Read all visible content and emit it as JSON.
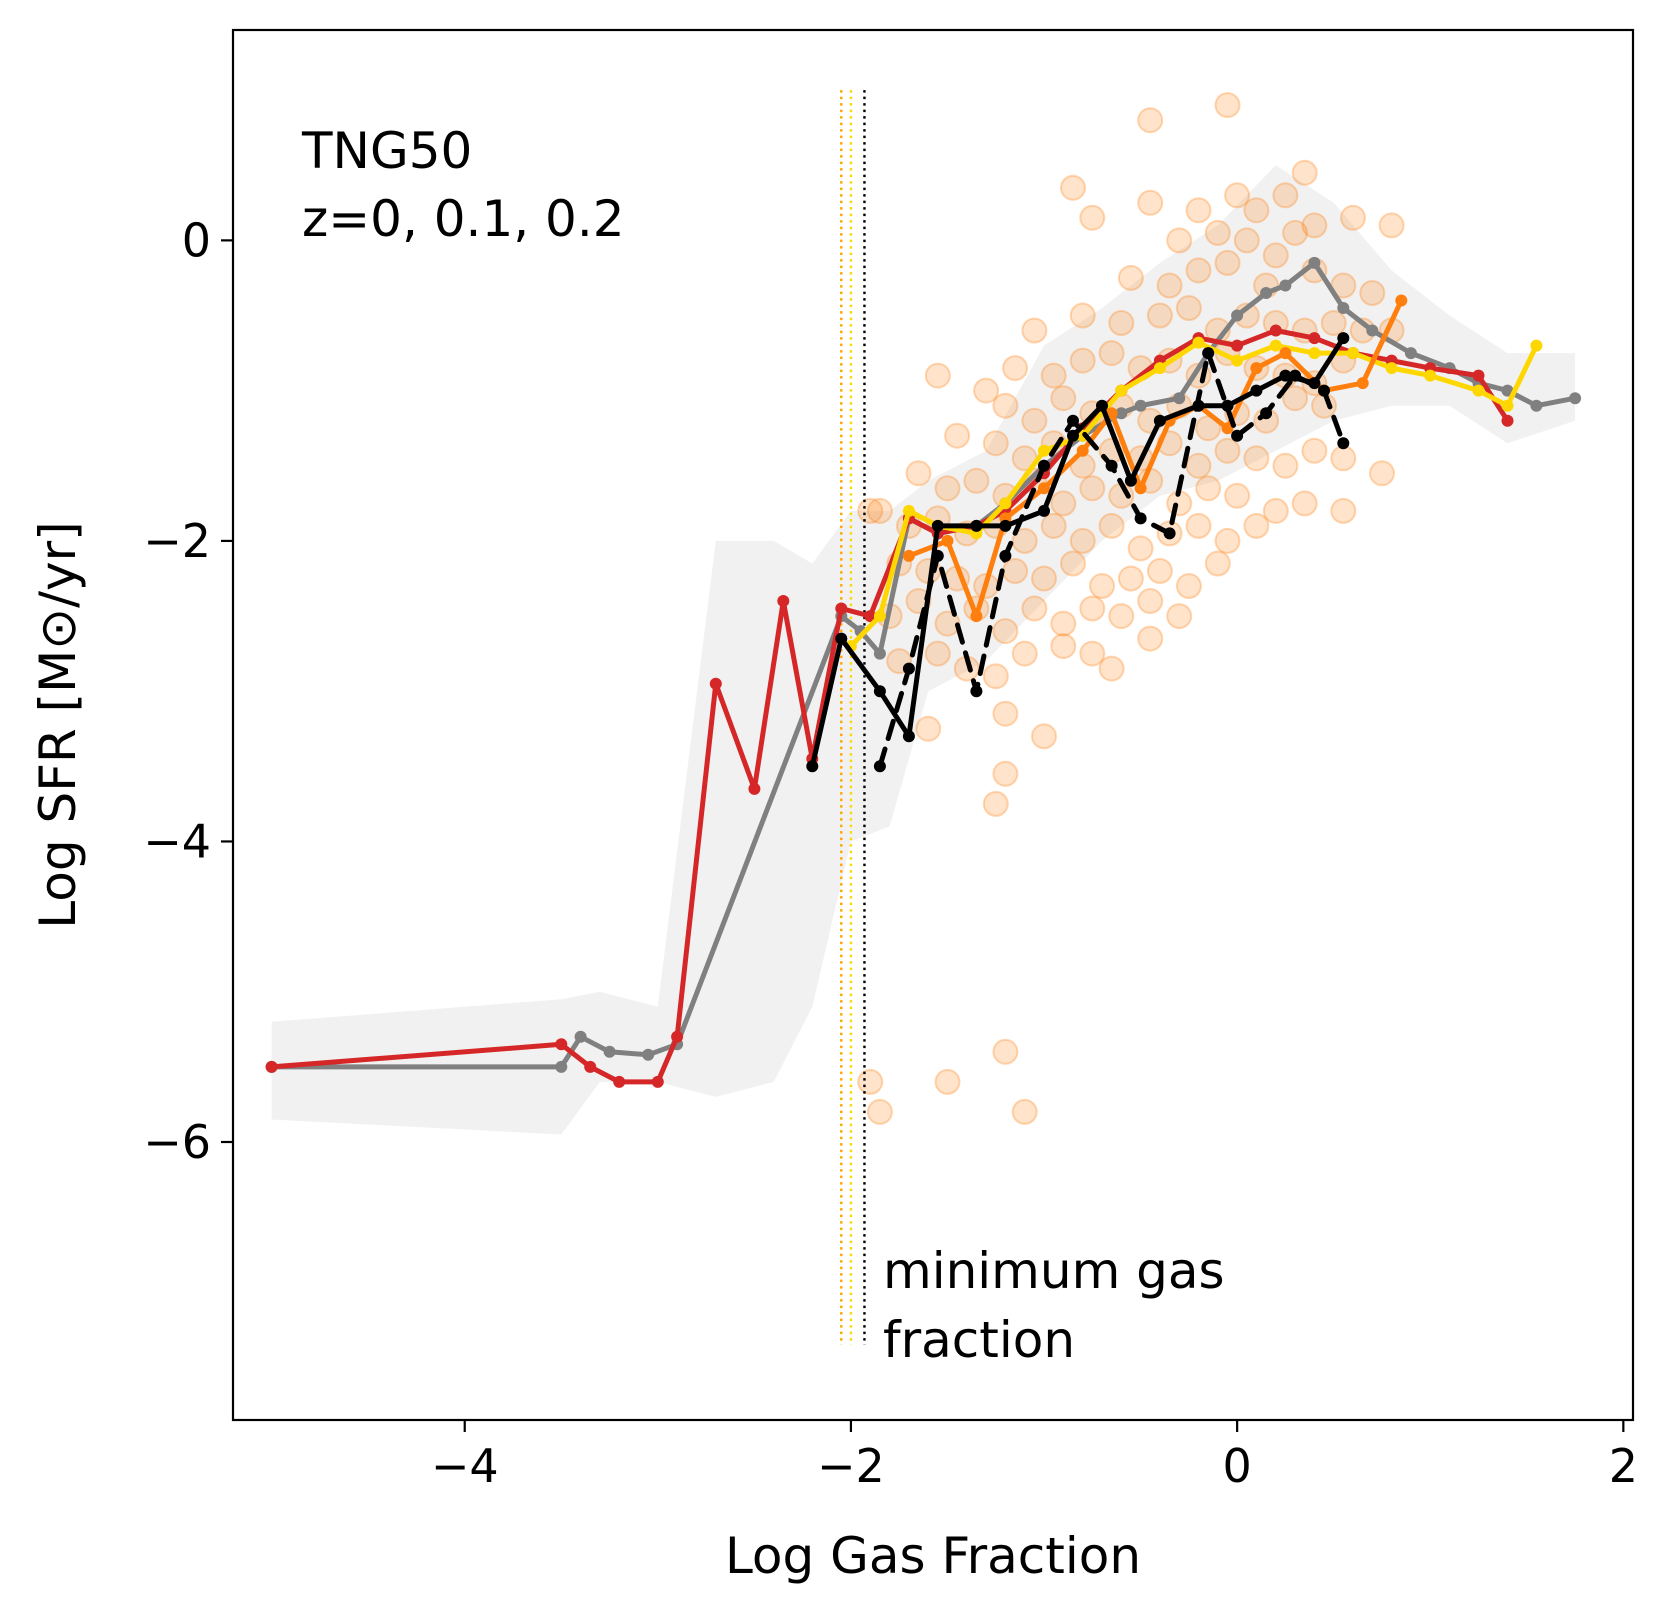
{
  "chart_data": {
    "type": "line",
    "xlabel": "Log Gas Fraction",
    "ylabel": "Log SFR [M⊙/yr]",
    "xlim": [
      -5.2,
      2.05
    ],
    "ylim": [
      -7.85,
      1.4
    ],
    "xticks": [
      -4,
      -2,
      0,
      2
    ],
    "xtick_labels": [
      "−4",
      "−2",
      "0",
      "2"
    ],
    "yticks": [
      0,
      -2,
      -4,
      -6
    ],
    "ytick_labels": [
      "0",
      "−2",
      "−4",
      "−6"
    ],
    "grid": false,
    "annotations": {
      "corner_line1": "TNG50",
      "corner_line2": "z=0, 0.1, 0.2",
      "min_gas_line1": "minimum gas",
      "min_gas_line2": "fraction"
    },
    "vlines": [
      {
        "x": -2.05,
        "color": "#ffa500",
        "style": "dotted"
      },
      {
        "x": -2.0,
        "color": "#ffd700",
        "style": "dotted"
      },
      {
        "x": -1.93,
        "color": "#000000",
        "style": "dotted"
      }
    ],
    "band": {
      "color": "#e0e0e0",
      "x": [
        -5.0,
        -3.5,
        -3.3,
        -3.0,
        -2.7,
        -2.4,
        -2.2,
        -2.0,
        -1.8,
        -1.6,
        -1.3,
        -1.0,
        -0.7,
        -0.4,
        -0.1,
        0.2,
        0.5,
        0.8,
        1.1,
        1.4,
        1.75
      ],
      "upper": [
        -5.2,
        -5.05,
        -5.0,
        -5.1,
        -2.0,
        -2.0,
        -2.15,
        -1.8,
        -1.8,
        -1.6,
        -1.4,
        -0.7,
        -0.45,
        -0.15,
        0.1,
        0.5,
        0.25,
        -0.2,
        -0.5,
        -0.75,
        -0.75
      ],
      "lower": [
        -5.85,
        -5.95,
        -5.6,
        -5.6,
        -5.7,
        -5.6,
        -5.1,
        -4.0,
        -3.9,
        -3.0,
        -2.8,
        -2.4,
        -2.0,
        -1.7,
        -1.6,
        -1.4,
        -1.2,
        -1.1,
        -1.1,
        -1.35,
        -1.2
      ]
    },
    "scatter": {
      "name": "",
      "color": "#ff7f0e",
      "points": [
        [
          -0.05,
          0.9
        ],
        [
          -0.45,
          0.8
        ],
        [
          -0.85,
          0.35
        ],
        [
          -0.75,
          0.15
        ],
        [
          -0.45,
          0.25
        ],
        [
          -0.2,
          0.2
        ],
        [
          0.0,
          0.3
        ],
        [
          0.1,
          0.2
        ],
        [
          0.25,
          0.3
        ],
        [
          0.35,
          0.45
        ],
        [
          0.4,
          0.1
        ],
        [
          0.6,
          0.15
        ],
        [
          0.8,
          0.1
        ],
        [
          -0.3,
          0.0
        ],
        [
          -0.1,
          0.05
        ],
        [
          0.05,
          0.0
        ],
        [
          0.2,
          -0.1
        ],
        [
          0.3,
          0.05
        ],
        [
          -0.55,
          -0.25
        ],
        [
          -0.35,
          -0.3
        ],
        [
          -0.2,
          -0.2
        ],
        [
          -0.05,
          -0.15
        ],
        [
          0.15,
          -0.3
        ],
        [
          0.4,
          -0.2
        ],
        [
          0.55,
          -0.3
        ],
        [
          0.7,
          -0.35
        ],
        [
          -1.05,
          -0.6
        ],
        [
          -0.8,
          -0.5
        ],
        [
          -0.6,
          -0.55
        ],
        [
          -0.4,
          -0.5
        ],
        [
          -0.25,
          -0.45
        ],
        [
          -0.1,
          -0.6
        ],
        [
          0.05,
          -0.5
        ],
        [
          0.2,
          -0.55
        ],
        [
          0.35,
          -0.6
        ],
        [
          0.5,
          -0.55
        ],
        [
          0.65,
          -0.6
        ],
        [
          0.8,
          -0.6
        ],
        [
          -1.55,
          -0.9
        ],
        [
          -1.3,
          -1.0
        ],
        [
          -1.15,
          -0.85
        ],
        [
          -0.95,
          -0.9
        ],
        [
          -0.8,
          -0.8
        ],
        [
          -0.65,
          -0.75
        ],
        [
          -0.5,
          -0.85
        ],
        [
          -0.35,
          -0.8
        ],
        [
          -0.2,
          -0.9
        ],
        [
          -0.05,
          -0.75
        ],
        [
          0.1,
          -0.85
        ],
        [
          0.25,
          -0.9
        ],
        [
          0.4,
          -0.95
        ],
        [
          0.55,
          -0.8
        ],
        [
          -1.2,
          -1.1
        ],
        [
          -1.05,
          -1.2
        ],
        [
          -0.9,
          -1.05
        ],
        [
          -0.75,
          -1.15
        ],
        [
          -0.6,
          -1.1
        ],
        [
          -0.45,
          -1.2
        ],
        [
          -0.3,
          -1.1
        ],
        [
          -0.15,
          -1.25
        ],
        [
          0.0,
          -1.15
        ],
        [
          0.15,
          -1.2
        ],
        [
          0.3,
          -1.05
        ],
        [
          0.45,
          -1.1
        ],
        [
          -1.45,
          -1.3
        ],
        [
          -1.25,
          -1.35
        ],
        [
          -1.1,
          -1.45
        ],
        [
          -0.95,
          -1.35
        ],
        [
          -0.8,
          -1.5
        ],
        [
          -0.65,
          -1.4
        ],
        [
          -0.5,
          -1.45
        ],
        [
          -0.35,
          -1.35
        ],
        [
          -0.2,
          -1.5
        ],
        [
          -0.05,
          -1.4
        ],
        [
          0.1,
          -1.45
        ],
        [
          0.25,
          -1.5
        ],
        [
          0.4,
          -1.4
        ],
        [
          0.55,
          -1.45
        ],
        [
          0.75,
          -1.55
        ],
        [
          -1.65,
          -1.55
        ],
        [
          -1.5,
          -1.65
        ],
        [
          -1.35,
          -1.6
        ],
        [
          -1.2,
          -1.7
        ],
        [
          -1.05,
          -1.6
        ],
        [
          -0.9,
          -1.75
        ],
        [
          -0.75,
          -1.65
        ],
        [
          -0.6,
          -1.7
        ],
        [
          -0.45,
          -1.6
        ],
        [
          -0.3,
          -1.75
        ],
        [
          -0.15,
          -1.65
        ],
        [
          0.0,
          -1.7
        ],
        [
          0.2,
          -1.8
        ],
        [
          0.35,
          -1.75
        ],
        [
          -1.85,
          -1.8
        ],
        [
          -1.7,
          -1.9
        ],
        [
          -1.55,
          -1.85
        ],
        [
          -1.4,
          -1.95
        ],
        [
          -1.25,
          -1.9
        ],
        [
          -1.1,
          -2.0
        ],
        [
          -0.95,
          -1.9
        ],
        [
          -0.8,
          -2.0
        ],
        [
          -0.65,
          -1.9
        ],
        [
          -0.5,
          -2.05
        ],
        [
          -0.35,
          -1.95
        ],
        [
          -0.2,
          -1.9
        ],
        [
          -0.05,
          -2.0
        ],
        [
          0.1,
          -1.9
        ],
        [
          0.55,
          -1.8
        ],
        [
          -1.9,
          -1.8
        ],
        [
          -1.75,
          -2.15
        ],
        [
          -1.6,
          -2.2
        ],
        [
          -1.45,
          -2.25
        ],
        [
          -1.3,
          -2.3
        ],
        [
          -1.15,
          -2.2
        ],
        [
          -1.0,
          -2.25
        ],
        [
          -0.85,
          -2.15
        ],
        [
          -0.7,
          -2.3
        ],
        [
          -0.55,
          -2.25
        ],
        [
          -0.4,
          -2.2
        ],
        [
          -0.25,
          -2.3
        ],
        [
          -0.1,
          -2.15
        ],
        [
          -1.8,
          -2.5
        ],
        [
          -1.65,
          -2.4
        ],
        [
          -1.5,
          -2.55
        ],
        [
          -1.35,
          -2.45
        ],
        [
          -1.2,
          -2.6
        ],
        [
          -1.05,
          -2.45
        ],
        [
          -0.9,
          -2.55
        ],
        [
          -0.75,
          -2.45
        ],
        [
          -0.6,
          -2.5
        ],
        [
          -0.45,
          -2.4
        ],
        [
          -0.3,
          -2.5
        ],
        [
          -1.75,
          -2.8
        ],
        [
          -1.55,
          -2.75
        ],
        [
          -1.4,
          -2.85
        ],
        [
          -1.25,
          -2.9
        ],
        [
          -1.1,
          -2.75
        ],
        [
          -0.9,
          -2.7
        ],
        [
          -0.75,
          -2.75
        ],
        [
          -0.65,
          -2.85
        ],
        [
          -0.45,
          -2.65
        ],
        [
          -1.6,
          -3.25
        ],
        [
          -1.2,
          -3.15
        ],
        [
          -1.0,
          -3.3
        ],
        [
          -1.2,
          -3.55
        ],
        [
          -1.25,
          -3.75
        ],
        [
          -1.9,
          -5.6
        ],
        [
          -1.85,
          -5.8
        ],
        [
          -1.5,
          -5.6
        ],
        [
          -1.2,
          -5.4
        ],
        [
          -1.1,
          -5.8
        ]
      ]
    },
    "series": [
      {
        "name": "",
        "color": "#808080",
        "style": "solid",
        "x": [
          -5.0,
          -3.5,
          -3.4,
          -3.25,
          -3.05,
          -2.9,
          -2.05,
          -1.95,
          -1.85,
          -1.7,
          -1.55,
          -1.35,
          -1.2,
          -1.0,
          -0.8,
          -0.6,
          -0.5,
          -0.3,
          -0.15,
          0.0,
          0.15,
          0.25,
          0.4,
          0.55,
          0.7,
          0.9,
          1.1,
          1.25,
          1.4,
          1.55,
          1.75
        ],
        "y": [
          -5.5,
          -5.5,
          -5.3,
          -5.4,
          -5.42,
          -5.35,
          -2.5,
          -2.6,
          -2.75,
          -1.85,
          -1.95,
          -1.9,
          -1.75,
          -1.5,
          -1.3,
          -1.15,
          -1.1,
          -1.05,
          -0.75,
          -0.5,
          -0.35,
          -0.3,
          -0.15,
          -0.45,
          -0.6,
          -0.75,
          -0.85,
          -0.95,
          -1.0,
          -1.1,
          -1.05
        ]
      },
      {
        "name": "",
        "color": "#d62728",
        "style": "solid",
        "x": [
          -5.0,
          -3.5,
          -3.35,
          -3.2,
          -3.0,
          -2.9,
          -2.7,
          -2.5,
          -2.35,
          -2.2,
          -2.05,
          -1.9,
          -1.7,
          -1.55,
          -1.35,
          -1.2,
          -1.0,
          -0.8,
          -0.6,
          -0.4,
          -0.2,
          0.0,
          0.2,
          0.4,
          0.6,
          0.8,
          1.0,
          1.25,
          1.4
        ],
        "y": [
          -5.5,
          -5.35,
          -5.5,
          -5.6,
          -5.6,
          -5.3,
          -2.95,
          -3.65,
          -2.4,
          -3.45,
          -2.45,
          -2.5,
          -1.85,
          -1.95,
          -1.9,
          -1.8,
          -1.55,
          -1.25,
          -1.0,
          -0.8,
          -0.65,
          -0.7,
          -0.6,
          -0.65,
          -0.75,
          -0.8,
          -0.85,
          -0.9,
          -1.2
        ]
      },
      {
        "name": "",
        "color": "#ffd700",
        "style": "solid",
        "x": [
          -2.0,
          -1.85,
          -1.7,
          -1.55,
          -1.35,
          -1.2,
          -1.0,
          -0.8,
          -0.6,
          -0.4,
          -0.2,
          0.0,
          0.2,
          0.4,
          0.6,
          0.8,
          1.0,
          1.25,
          1.4,
          1.55
        ],
        "y": [
          -2.7,
          -2.5,
          -1.8,
          -1.9,
          -1.95,
          -1.75,
          -1.4,
          -1.3,
          -1.0,
          -0.85,
          -0.68,
          -0.8,
          -0.7,
          -0.75,
          -0.75,
          -0.85,
          -0.9,
          -1.0,
          -1.1,
          -0.7
        ]
      },
      {
        "name": "",
        "color": "#ff7f0e",
        "style": "solid",
        "x": [
          -1.7,
          -1.5,
          -1.35,
          -1.2,
          -1.0,
          -0.8,
          -0.65,
          -0.5,
          -0.35,
          -0.2,
          -0.05,
          0.1,
          0.25,
          0.45,
          0.65,
          0.85
        ],
        "y": [
          -2.1,
          -2.0,
          -2.5,
          -1.85,
          -1.65,
          -1.4,
          -1.15,
          -1.65,
          -1.2,
          -1.1,
          -1.25,
          -0.85,
          -0.75,
          -1.0,
          -0.95,
          -0.4
        ]
      },
      {
        "name": "",
        "color": "#000000",
        "style": "solid",
        "x": [
          -2.2,
          -2.05,
          -1.85,
          -1.7,
          -1.55,
          -1.35,
          -1.2,
          -1.0,
          -0.85,
          -0.7,
          -0.55,
          -0.4,
          -0.2,
          -0.05,
          0.1,
          0.25,
          0.4,
          0.55
        ],
        "y": [
          -3.5,
          -2.65,
          -3.0,
          -3.3,
          -1.9,
          -1.9,
          -1.9,
          -1.8,
          -1.3,
          -1.1,
          -1.6,
          -1.2,
          -1.1,
          -1.1,
          -1.0,
          -0.9,
          -0.95,
          -0.65
        ]
      },
      {
        "name": "",
        "color": "#000000",
        "style": "dashed",
        "x": [
          -1.85,
          -1.7,
          -1.55,
          -1.35,
          -1.2,
          -1.0,
          -0.85,
          -0.65,
          -0.5,
          -0.35,
          -0.15,
          0.0,
          0.15,
          0.3,
          0.45,
          0.55
        ],
        "y": [
          -3.5,
          -2.85,
          -2.1,
          -3.0,
          -2.1,
          -1.5,
          -1.2,
          -1.5,
          -1.85,
          -1.95,
          -0.75,
          -1.3,
          -1.15,
          -0.9,
          -1.0,
          -1.35
        ]
      }
    ]
  }
}
